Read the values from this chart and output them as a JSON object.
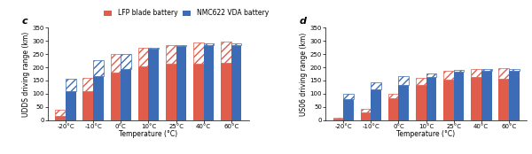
{
  "temperatures": [
    "-20°C",
    "-10°C",
    "0°C",
    "10°C",
    "25°C",
    "40°C",
    "60°C"
  ],
  "udds": {
    "lfp_solid": [
      15,
      110,
      180,
      205,
      212,
      215,
      218
    ],
    "lfp_hatch": [
      25,
      50,
      72,
      68,
      73,
      78,
      78
    ],
    "nmc_solid": [
      110,
      168,
      193,
      270,
      280,
      285,
      285
    ],
    "nmc_hatch": [
      48,
      60,
      58,
      5,
      5,
      5,
      5
    ]
  },
  "us06": {
    "lfp_solid": [
      5,
      28,
      83,
      133,
      153,
      163,
      158
    ],
    "lfp_hatch": [
      5,
      13,
      17,
      28,
      35,
      32,
      40
    ],
    "nmc_solid": [
      80,
      118,
      132,
      163,
      182,
      186,
      186
    ],
    "nmc_hatch": [
      18,
      25,
      35,
      15,
      8,
      8,
      8
    ]
  },
  "lfp_color": "#e05c4b",
  "nmc_color": "#3b6cb5",
  "hatch_color": "#ffffff",
  "hatch_pattern": "////",
  "ylabel_c": "UDDS driving range (km)",
  "ylabel_d": "US06 driving range (km)",
  "xlabel": "Temperature (°C)",
  "ylim": [
    0,
    350
  ],
  "yticks": [
    0,
    50,
    100,
    150,
    200,
    250,
    300,
    350
  ],
  "legend_label_lfp": "LFP blade battery",
  "legend_label_nmc": "NMC622 VDA battery",
  "label_c": "c",
  "label_d": "d",
  "bar_width": 0.38,
  "axis_fontsize": 5.5,
  "tick_fontsize": 5.0,
  "legend_fontsize": 5.5
}
